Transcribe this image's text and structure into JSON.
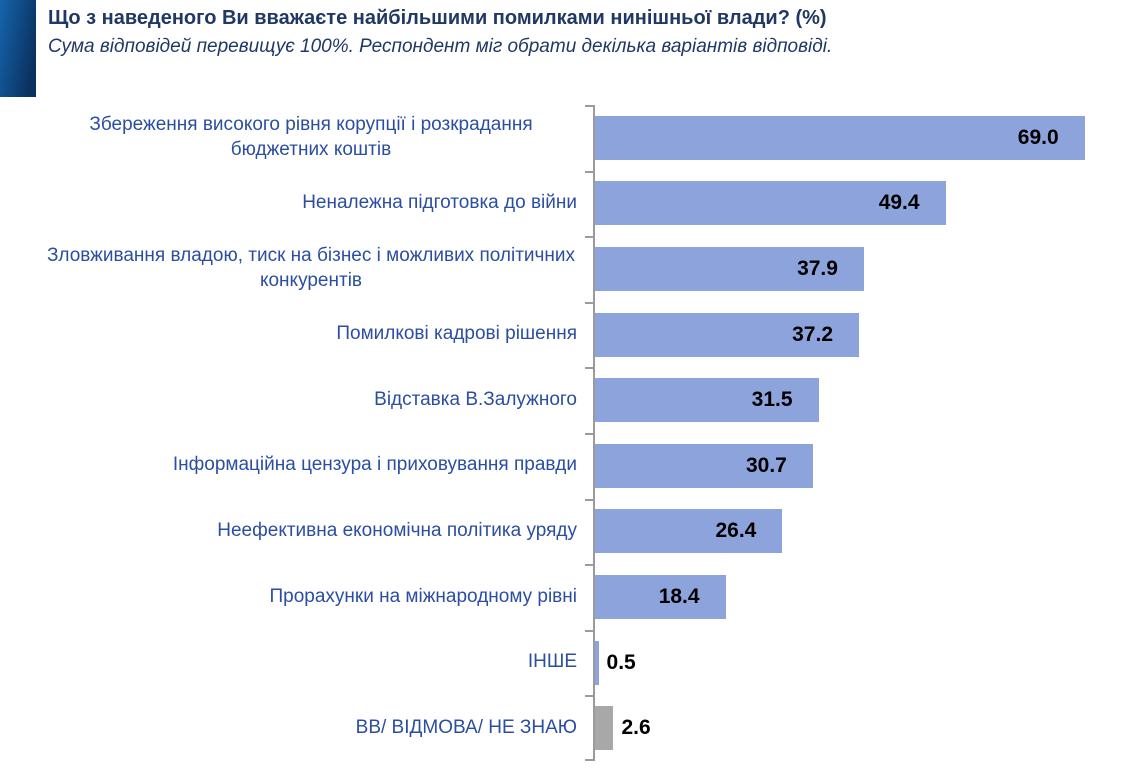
{
  "header": {
    "title": "Що з наведеного Ви вважаєте найбільшими помилками нинішньої влади? (%)",
    "subtitle": "Сума відповідей перевищує 100%. Респондент міг обрати декілька варіантів відповіді."
  },
  "colors": {
    "bar_blue": "#8da3dc",
    "bar_gray": "#a8a8a8",
    "title_text": "#1f3864",
    "category_text": "#2b4ea2",
    "value_text": "#000000",
    "axis": "#9b9b9b",
    "accent_block_light": "#1565ad",
    "accent_block_dark": "#0a315f"
  },
  "chart_data": {
    "type": "bar",
    "orientation": "horizontal",
    "unit": "%",
    "title": "Що з наведеного Ви вважаєте найбільшими помилками нинішньої влади? (%)",
    "subtitle": "Сума відповідей перевищує 100%. Респондент міг обрати декілька варіантів відповіді.",
    "xlabel": "",
    "ylabel": "",
    "xlim": [
      0,
      77.5
    ],
    "grid": false,
    "legend": false,
    "value_labels_shown": true,
    "categories": [
      "Збереження високого рівня корупції і розкрадання бюджетних коштів",
      "Неналежна підготовка до війни",
      "Зловживання владою, тиск на бізнес і можливих політичних конкурентів",
      "Помилкові кадрові рішення",
      "Відставка В.Залужного",
      "Інформаційна цензура і приховування правди",
      "Неефективна економічна політика уряду",
      "Прорахунки на міжнародному рівні",
      "ІНШЕ",
      "ВВ/ ВІДМОВА/ НЕ ЗНАЮ"
    ],
    "values": [
      69.0,
      49.4,
      37.9,
      37.2,
      31.5,
      30.7,
      26.4,
      18.4,
      0.5,
      2.6
    ],
    "bar_colors": [
      "#8da3dc",
      "#8da3dc",
      "#8da3dc",
      "#8da3dc",
      "#8da3dc",
      "#8da3dc",
      "#8da3dc",
      "#8da3dc",
      "#8da3dc",
      "#a8a8a8"
    ]
  }
}
